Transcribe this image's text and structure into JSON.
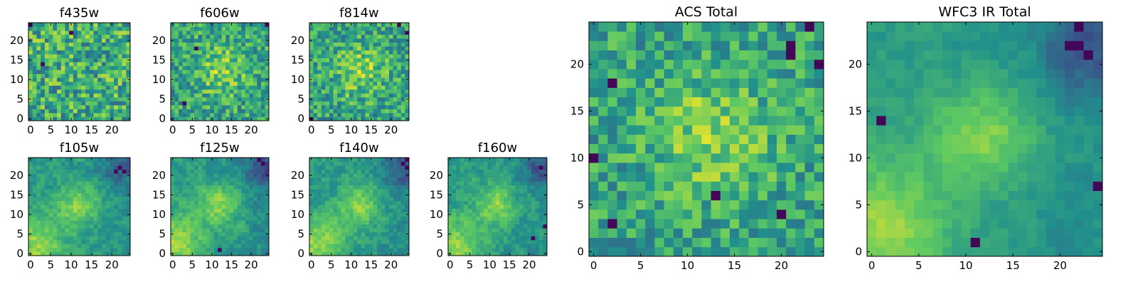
{
  "figure": {
    "colormap": "viridis",
    "palette": [
      "#440154",
      "#3b528b",
      "#21918c",
      "#5ec962",
      "#fde725"
    ]
  },
  "chart_data": [
    {
      "type": "heatmap",
      "title": "f435w",
      "grid": [
        25,
        25
      ],
      "xlim": [
        0,
        24
      ],
      "ylim": [
        0,
        24
      ],
      "xticks": [
        0,
        5,
        10,
        15,
        20
      ],
      "yticks": [
        0,
        5,
        10,
        15,
        20
      ],
      "tick_labels": [
        "0",
        "5",
        "10",
        "15",
        "20"
      ],
      "grid_lines": false,
      "seed": 11,
      "pattern": "noise",
      "noise": 0.55,
      "dark_cells": [
        [
          0,
          24
        ],
        [
          3,
          14
        ],
        [
          10,
          22
        ]
      ]
    },
    {
      "type": "heatmap",
      "title": "f606w",
      "grid": [
        25,
        25
      ],
      "xlim": [
        0,
        24
      ],
      "ylim": [
        0,
        24
      ],
      "xticks": [
        0,
        5,
        10,
        15,
        20
      ],
      "yticks": [
        0,
        5,
        10,
        15,
        20
      ],
      "tick_labels": [
        "0",
        "5",
        "10",
        "15",
        "20"
      ],
      "grid_lines": false,
      "seed": 23,
      "pattern": "center",
      "noise": 0.45,
      "dark_cells": [
        [
          24,
          24
        ],
        [
          6,
          18
        ],
        [
          3,
          4
        ]
      ]
    },
    {
      "type": "heatmap",
      "title": "f814w",
      "grid": [
        25,
        25
      ],
      "xlim": [
        0,
        24
      ],
      "ylim": [
        0,
        24
      ],
      "xticks": [
        0,
        5,
        10,
        15,
        20
      ],
      "yticks": [
        0,
        5,
        10,
        15,
        20
      ],
      "tick_labels": [
        "0",
        "5",
        "10",
        "15",
        "20"
      ],
      "grid_lines": false,
      "seed": 37,
      "pattern": "center",
      "noise": 0.45,
      "dark_cells": [
        [
          0,
          0
        ],
        [
          24,
          22
        ],
        [
          22,
          24
        ]
      ]
    },
    {
      "type": "heatmap",
      "title": "f105w",
      "grid": [
        25,
        25
      ],
      "xlim": [
        0,
        24
      ],
      "ylim": [
        0,
        24
      ],
      "xticks": [
        0,
        5,
        10,
        15,
        20
      ],
      "yticks": [
        0,
        5,
        10,
        15,
        20
      ],
      "tick_labels": [
        "0",
        "5",
        "10",
        "15",
        "20"
      ],
      "grid_lines": false,
      "seed": 41,
      "pattern": "ir",
      "noise": 0.3,
      "dark_cells": [
        [
          22,
          22
        ],
        [
          23,
          21
        ],
        [
          21,
          21
        ]
      ]
    },
    {
      "type": "heatmap",
      "title": "f125w",
      "grid": [
        25,
        25
      ],
      "xlim": [
        0,
        24
      ],
      "ylim": [
        0,
        24
      ],
      "xticks": [
        0,
        5,
        10,
        15,
        20
      ],
      "yticks": [
        0,
        5,
        10,
        15,
        20
      ],
      "tick_labels": [
        "0",
        "5",
        "10",
        "15",
        "20"
      ],
      "grid_lines": false,
      "seed": 53,
      "pattern": "ir",
      "noise": 0.3,
      "dark_cells": [
        [
          22,
          24
        ],
        [
          23,
          23
        ],
        [
          12,
          1
        ]
      ]
    },
    {
      "type": "heatmap",
      "title": "f140w",
      "grid": [
        25,
        25
      ],
      "xlim": [
        0,
        24
      ],
      "ylim": [
        0,
        24
      ],
      "xticks": [
        0,
        5,
        10,
        15,
        20
      ],
      "yticks": [
        0,
        5,
        10,
        15,
        20
      ],
      "tick_labels": [
        "0",
        "5",
        "10",
        "15",
        "20"
      ],
      "grid_lines": false,
      "seed": 67,
      "pattern": "ir",
      "noise": 0.3,
      "dark_cells": [
        [
          24,
          24
        ],
        [
          23,
          23
        ],
        [
          24,
          22
        ]
      ]
    },
    {
      "type": "heatmap",
      "title": "f160w",
      "grid": [
        25,
        25
      ],
      "xlim": [
        0,
        24
      ],
      "ylim": [
        0,
        24
      ],
      "xticks": [
        0,
        5,
        10,
        15,
        20
      ],
      "yticks": [
        0,
        5,
        10,
        15,
        20
      ],
      "tick_labels": [
        "0",
        "5",
        "10",
        "15",
        "20"
      ],
      "grid_lines": false,
      "seed": 79,
      "pattern": "ir",
      "noise": 0.3,
      "dark_cells": [
        [
          24,
          7
        ],
        [
          23,
          22
        ],
        [
          21,
          4
        ]
      ]
    },
    {
      "type": "heatmap",
      "title": "ACS Total",
      "grid": [
        25,
        25
      ],
      "xlim": [
        0,
        24
      ],
      "ylim": [
        0,
        24
      ],
      "xticks": [
        0,
        5,
        10,
        15,
        20
      ],
      "yticks": [
        0,
        5,
        10,
        15,
        20
      ],
      "tick_labels": [
        "0",
        "5",
        "10",
        "15",
        "20"
      ],
      "grid_lines": false,
      "seed": 97,
      "pattern": "center",
      "noise": 0.4,
      "dark_cells": [
        [
          23,
          24
        ],
        [
          21,
          22
        ],
        [
          21,
          21
        ],
        [
          24,
          20
        ],
        [
          0,
          10
        ],
        [
          2,
          18
        ],
        [
          2,
          3
        ],
        [
          13,
          6
        ],
        [
          20,
          4
        ]
      ]
    },
    {
      "type": "heatmap",
      "title": "WFC3 IR Total",
      "grid": [
        25,
        25
      ],
      "xlim": [
        0,
        24
      ],
      "ylim": [
        0,
        24
      ],
      "xticks": [
        0,
        5,
        10,
        15,
        20
      ],
      "yticks": [
        0,
        5,
        10,
        15,
        20
      ],
      "tick_labels": [
        "0",
        "5",
        "10",
        "15",
        "20"
      ],
      "grid_lines": false,
      "seed": 131,
      "pattern": "ir",
      "noise": 0.18,
      "dark_cells": [
        [
          22,
          24
        ],
        [
          21,
          22
        ],
        [
          22,
          22
        ],
        [
          23,
          21
        ],
        [
          24,
          7
        ],
        [
          1,
          14
        ],
        [
          11,
          1
        ]
      ]
    }
  ]
}
